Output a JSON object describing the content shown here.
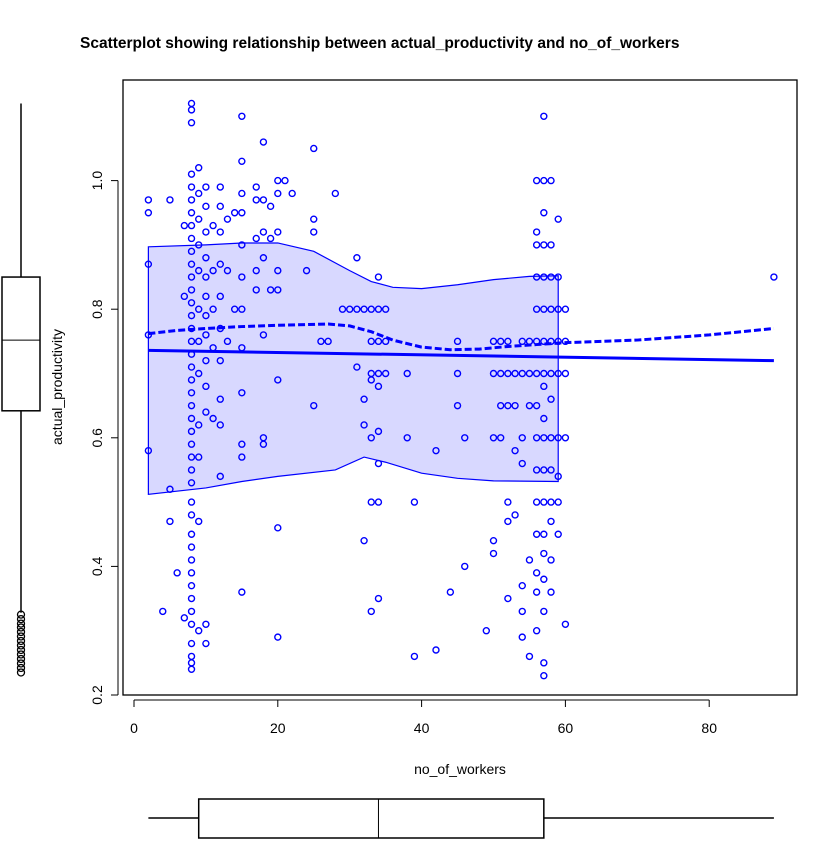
{
  "chart_data": {
    "type": "scatter",
    "title": "Scatterplot showing relationship between actual_productivity and no_of_workers",
    "xlabel": "no_of_workers",
    "ylabel": "actual_productivity",
    "xlim": [
      -1.5,
      92.5
    ],
    "ylim": [
      0.2,
      1.157
    ],
    "xticks": [
      0,
      20,
      40,
      60,
      80
    ],
    "yticks": [
      0.2,
      0.4,
      0.6,
      0.8,
      1.0
    ],
    "xtick_labels": [
      "0",
      "20",
      "40",
      "60",
      "80"
    ],
    "ytick_labels": [
      "0.2",
      "0.4",
      "0.6",
      "0.8",
      "1.0"
    ],
    "grid": false,
    "colors": {
      "points": "#0000ff",
      "band_fill": "#d8d8ff",
      "lines": "#0000ff"
    },
    "regression_line": [
      [
        2,
        0.736
      ],
      [
        89,
        0.72
      ]
    ],
    "smooth_line": [
      [
        2,
        0.762
      ],
      [
        6,
        0.767
      ],
      [
        10,
        0.77
      ],
      [
        15,
        0.773
      ],
      [
        20,
        0.775
      ],
      [
        27,
        0.777
      ],
      [
        30,
        0.774
      ],
      [
        33,
        0.765
      ],
      [
        36,
        0.752
      ],
      [
        40,
        0.741
      ],
      [
        44,
        0.737
      ],
      [
        48,
        0.738
      ],
      [
        52,
        0.742
      ],
      [
        56,
        0.745
      ],
      [
        60,
        0.748
      ],
      [
        70,
        0.752
      ],
      [
        80,
        0.76
      ],
      [
        89,
        0.77
      ]
    ],
    "spread_upper": [
      [
        2,
        0.897
      ],
      [
        10,
        0.9
      ],
      [
        15,
        0.903
      ],
      [
        20,
        0.903
      ],
      [
        25,
        0.89
      ],
      [
        30,
        0.86
      ],
      [
        33,
        0.843
      ],
      [
        36,
        0.834
      ],
      [
        40,
        0.832
      ],
      [
        45,
        0.838
      ],
      [
        50,
        0.846
      ],
      [
        55,
        0.851
      ],
      [
        59,
        0.852
      ]
    ],
    "spread_lower": [
      [
        2,
        0.512
      ],
      [
        10,
        0.522
      ],
      [
        15,
        0.532
      ],
      [
        20,
        0.54
      ],
      [
        28,
        0.55
      ],
      [
        32,
        0.57
      ],
      [
        35,
        0.562
      ],
      [
        40,
        0.545
      ],
      [
        45,
        0.537
      ],
      [
        50,
        0.533
      ],
      [
        59,
        0.532
      ]
    ],
    "points": [
      [
        2,
        0.97
      ],
      [
        2,
        0.95
      ],
      [
        2,
        0.87
      ],
      [
        2,
        0.76
      ],
      [
        2,
        0.58
      ],
      [
        4,
        0.33
      ],
      [
        5,
        0.97
      ],
      [
        5,
        0.52
      ],
      [
        5,
        0.47
      ],
      [
        6,
        0.39
      ],
      [
        7,
        0.93
      ],
      [
        7,
        0.82
      ],
      [
        7,
        0.32
      ],
      [
        8,
        1.12
      ],
      [
        8,
        1.11
      ],
      [
        8,
        1.09
      ],
      [
        8,
        1.01
      ],
      [
        8,
        0.99
      ],
      [
        8,
        0.97
      ],
      [
        8,
        0.95
      ],
      [
        8,
        0.93
      ],
      [
        8,
        0.91
      ],
      [
        8,
        0.89
      ],
      [
        8,
        0.87
      ],
      [
        8,
        0.85
      ],
      [
        8,
        0.83
      ],
      [
        8,
        0.81
      ],
      [
        8,
        0.79
      ],
      [
        8,
        0.77
      ],
      [
        8,
        0.75
      ],
      [
        8,
        0.73
      ],
      [
        8,
        0.71
      ],
      [
        8,
        0.69
      ],
      [
        8,
        0.67
      ],
      [
        8,
        0.65
      ],
      [
        8,
        0.63
      ],
      [
        8,
        0.61
      ],
      [
        8,
        0.59
      ],
      [
        8,
        0.57
      ],
      [
        8,
        0.55
      ],
      [
        8,
        0.53
      ],
      [
        8,
        0.5
      ],
      [
        8,
        0.48
      ],
      [
        8,
        0.45
      ],
      [
        8,
        0.43
      ],
      [
        8,
        0.41
      ],
      [
        8,
        0.39
      ],
      [
        8,
        0.37
      ],
      [
        8,
        0.35
      ],
      [
        8,
        0.33
      ],
      [
        8,
        0.31
      ],
      [
        8,
        0.28
      ],
      [
        8,
        0.26
      ],
      [
        8,
        0.25
      ],
      [
        8,
        0.24
      ],
      [
        9,
        1.02
      ],
      [
        9,
        0.98
      ],
      [
        9,
        0.94
      ],
      [
        9,
        0.9
      ],
      [
        9,
        0.86
      ],
      [
        9,
        0.8
      ],
      [
        9,
        0.75
      ],
      [
        9,
        0.7
      ],
      [
        9,
        0.62
      ],
      [
        9,
        0.57
      ],
      [
        9,
        0.47
      ],
      [
        9,
        0.3
      ],
      [
        10,
        0.99
      ],
      [
        10,
        0.96
      ],
      [
        10,
        0.92
      ],
      [
        10,
        0.88
      ],
      [
        10,
        0.85
      ],
      [
        10,
        0.82
      ],
      [
        10,
        0.79
      ],
      [
        10,
        0.76
      ],
      [
        10,
        0.72
      ],
      [
        10,
        0.68
      ],
      [
        10,
        0.64
      ],
      [
        10,
        0.31
      ],
      [
        10,
        0.28
      ],
      [
        11,
        0.93
      ],
      [
        11,
        0.86
      ],
      [
        11,
        0.8
      ],
      [
        11,
        0.74
      ],
      [
        11,
        0.63
      ],
      [
        12,
        0.99
      ],
      [
        12,
        0.96
      ],
      [
        12,
        0.92
      ],
      [
        12,
        0.87
      ],
      [
        12,
        0.82
      ],
      [
        12,
        0.77
      ],
      [
        12,
        0.72
      ],
      [
        12,
        0.66
      ],
      [
        12,
        0.62
      ],
      [
        12,
        0.54
      ],
      [
        13,
        0.94
      ],
      [
        13,
        0.86
      ],
      [
        13,
        0.75
      ],
      [
        14,
        0.95
      ],
      [
        14,
        0.8
      ],
      [
        15,
        1.1
      ],
      [
        15,
        1.03
      ],
      [
        15,
        0.98
      ],
      [
        15,
        0.95
      ],
      [
        15,
        0.9
      ],
      [
        15,
        0.85
      ],
      [
        15,
        0.8
      ],
      [
        15,
        0.74
      ],
      [
        15,
        0.67
      ],
      [
        15,
        0.59
      ],
      [
        15,
        0.57
      ],
      [
        15,
        0.36
      ],
      [
        17,
        0.99
      ],
      [
        17,
        0.97
      ],
      [
        17,
        0.91
      ],
      [
        17,
        0.86
      ],
      [
        17,
        0.83
      ],
      [
        18,
        1.06
      ],
      [
        18,
        0.97
      ],
      [
        18,
        0.92
      ],
      [
        18,
        0.88
      ],
      [
        18,
        0.76
      ],
      [
        18,
        0.6
      ],
      [
        18,
        0.59
      ],
      [
        19,
        0.96
      ],
      [
        19,
        0.91
      ],
      [
        19,
        0.83
      ],
      [
        20,
        1.0
      ],
      [
        20,
        0.98
      ],
      [
        20,
        0.92
      ],
      [
        20,
        0.86
      ],
      [
        20,
        0.83
      ],
      [
        20,
        0.69
      ],
      [
        20,
        0.46
      ],
      [
        20,
        0.29
      ],
      [
        21,
        1.0
      ],
      [
        22,
        0.98
      ],
      [
        24,
        0.86
      ],
      [
        25,
        1.05
      ],
      [
        25,
        0.94
      ],
      [
        25,
        0.92
      ],
      [
        25,
        0.65
      ],
      [
        26,
        0.75
      ],
      [
        27,
        0.75
      ],
      [
        28,
        0.98
      ],
      [
        29,
        0.8
      ],
      [
        30,
        0.8
      ],
      [
        31,
        0.88
      ],
      [
        31,
        0.8
      ],
      [
        31,
        0.71
      ],
      [
        32,
        0.8
      ],
      [
        32,
        0.66
      ],
      [
        32,
        0.62
      ],
      [
        32,
        0.44
      ],
      [
        33,
        0.8
      ],
      [
        33,
        0.75
      ],
      [
        33,
        0.7
      ],
      [
        33,
        0.69
      ],
      [
        33,
        0.6
      ],
      [
        33,
        0.5
      ],
      [
        33,
        0.33
      ],
      [
        34,
        0.85
      ],
      [
        34,
        0.8
      ],
      [
        34,
        0.75
      ],
      [
        34,
        0.7
      ],
      [
        34,
        0.68
      ],
      [
        34,
        0.61
      ],
      [
        34,
        0.56
      ],
      [
        34,
        0.5
      ],
      [
        34,
        0.35
      ],
      [
        35,
        0.8
      ],
      [
        35,
        0.75
      ],
      [
        35,
        0.7
      ],
      [
        38,
        0.7
      ],
      [
        38,
        0.6
      ],
      [
        39,
        0.5
      ],
      [
        39,
        0.26
      ],
      [
        42,
        0.58
      ],
      [
        42,
        0.27
      ],
      [
        44,
        0.36
      ],
      [
        45,
        0.75
      ],
      [
        45,
        0.7
      ],
      [
        45,
        0.65
      ],
      [
        46,
        0.6
      ],
      [
        46,
        0.4
      ],
      [
        49,
        0.3
      ],
      [
        50,
        0.75
      ],
      [
        50,
        0.7
      ],
      [
        50,
        0.6
      ],
      [
        50,
        0.44
      ],
      [
        50,
        0.42
      ],
      [
        51,
        0.75
      ],
      [
        51,
        0.7
      ],
      [
        51,
        0.65
      ],
      [
        51,
        0.6
      ],
      [
        52,
        0.75
      ],
      [
        52,
        0.7
      ],
      [
        52,
        0.65
      ],
      [
        52,
        0.5
      ],
      [
        52,
        0.47
      ],
      [
        52,
        0.35
      ],
      [
        53,
        0.7
      ],
      [
        53,
        0.65
      ],
      [
        53,
        0.58
      ],
      [
        53,
        0.48
      ],
      [
        54,
        0.75
      ],
      [
        54,
        0.7
      ],
      [
        54,
        0.6
      ],
      [
        54,
        0.56
      ],
      [
        54,
        0.37
      ],
      [
        54,
        0.33
      ],
      [
        54,
        0.29
      ],
      [
        55,
        0.75
      ],
      [
        55,
        0.7
      ],
      [
        55,
        0.65
      ],
      [
        55,
        0.41
      ],
      [
        55,
        0.26
      ],
      [
        56,
        1.0
      ],
      [
        56,
        0.92
      ],
      [
        56,
        0.9
      ],
      [
        56,
        0.85
      ],
      [
        56,
        0.8
      ],
      [
        56,
        0.75
      ],
      [
        56,
        0.7
      ],
      [
        56,
        0.65
      ],
      [
        56,
        0.6
      ],
      [
        56,
        0.55
      ],
      [
        56,
        0.5
      ],
      [
        56,
        0.45
      ],
      [
        56,
        0.39
      ],
      [
        56,
        0.36
      ],
      [
        56,
        0.3
      ],
      [
        57,
        1.1
      ],
      [
        57,
        1.0
      ],
      [
        57,
        0.95
      ],
      [
        57,
        0.9
      ],
      [
        57,
        0.85
      ],
      [
        57,
        0.8
      ],
      [
        57,
        0.75
      ],
      [
        57,
        0.7
      ],
      [
        57,
        0.68
      ],
      [
        57,
        0.63
      ],
      [
        57,
        0.6
      ],
      [
        57,
        0.55
      ],
      [
        57,
        0.5
      ],
      [
        57,
        0.45
      ],
      [
        57,
        0.42
      ],
      [
        57,
        0.38
      ],
      [
        57,
        0.33
      ],
      [
        57,
        0.25
      ],
      [
        57,
        0.23
      ],
      [
        58,
        1.0
      ],
      [
        58,
        0.9
      ],
      [
        58,
        0.85
      ],
      [
        58,
        0.8
      ],
      [
        58,
        0.75
      ],
      [
        58,
        0.7
      ],
      [
        58,
        0.66
      ],
      [
        58,
        0.6
      ],
      [
        58,
        0.55
      ],
      [
        58,
        0.5
      ],
      [
        58,
        0.47
      ],
      [
        58,
        0.41
      ],
      [
        58,
        0.36
      ],
      [
        59,
        0.94
      ],
      [
        59,
        0.85
      ],
      [
        59,
        0.8
      ],
      [
        59,
        0.75
      ],
      [
        59,
        0.7
      ],
      [
        59,
        0.6
      ],
      [
        59,
        0.54
      ],
      [
        59,
        0.5
      ],
      [
        59,
        0.45
      ],
      [
        60,
        0.8
      ],
      [
        60,
        0.75
      ],
      [
        60,
        0.7
      ],
      [
        60,
        0.6
      ],
      [
        60,
        0.31
      ],
      [
        89,
        0.85
      ]
    ],
    "x_boxplot": {
      "min": 2,
      "q1": 9,
      "median": 34,
      "q3": 57,
      "max": 89
    },
    "y_boxplot": {
      "min": 0.328,
      "q1": 0.642,
      "median": 0.752,
      "q3": 0.85,
      "max": 1.12,
      "outliers": [
        0.325,
        0.318,
        0.311,
        0.305,
        0.298,
        0.291,
        0.284,
        0.277,
        0.27,
        0.263,
        0.256,
        0.249,
        0.242,
        0.235
      ]
    }
  }
}
